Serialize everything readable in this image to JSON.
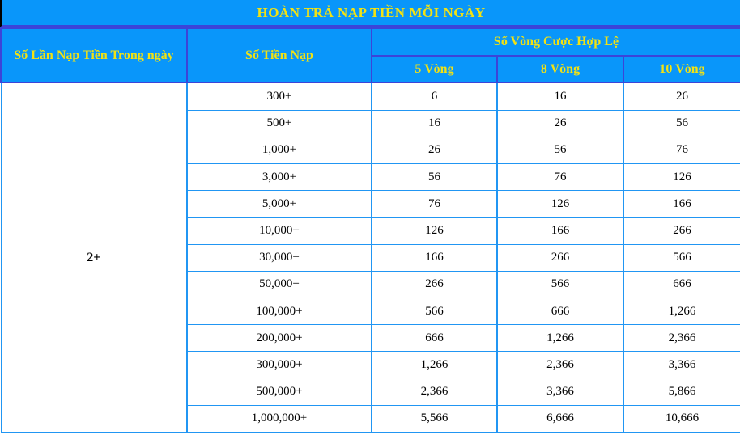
{
  "banner": {
    "title": "HOÀN TRẢ NẠP TIỀN MỖI NGÀY"
  },
  "table": {
    "headers": {
      "deposit_count": "Số Lần Nạp Tiền Trong ngày",
      "deposit_amount": "Số Tiền Nạp",
      "valid_rounds_group": "Số Vòng Cược Hợp Lệ",
      "round_columns": [
        "5 Vòng",
        "8 Vòng",
        "10 Vòng"
      ]
    },
    "deposit_count_value": "2+",
    "rows": [
      {
        "amount": "300+",
        "values": [
          "6",
          "16",
          "26"
        ]
      },
      {
        "amount": "500+",
        "values": [
          "16",
          "26",
          "56"
        ]
      },
      {
        "amount": "1,000+",
        "values": [
          "26",
          "56",
          "76"
        ]
      },
      {
        "amount": "3,000+",
        "values": [
          "56",
          "76",
          "126"
        ]
      },
      {
        "amount": "5,000+",
        "values": [
          "76",
          "126",
          "166"
        ]
      },
      {
        "amount": "10,000+",
        "values": [
          "126",
          "166",
          "266"
        ]
      },
      {
        "amount": "30,000+",
        "values": [
          "166",
          "266",
          "566"
        ]
      },
      {
        "amount": "50,000+",
        "values": [
          "266",
          "566",
          "666"
        ]
      },
      {
        "amount": "100,000+",
        "values": [
          "566",
          "666",
          "1,266"
        ]
      },
      {
        "amount": "200,000+",
        "values": [
          "666",
          "1,266",
          "2,366"
        ]
      },
      {
        "amount": "300,000+",
        "values": [
          "1,266",
          "2,366",
          "3,366"
        ]
      },
      {
        "amount": "500,000+",
        "values": [
          "2,366",
          "3,366",
          "5,866"
        ]
      },
      {
        "amount": "1,000,000+",
        "values": [
          "5,566",
          "6,666",
          "10,666"
        ]
      }
    ]
  },
  "colors": {
    "header_bg": "#0996fa",
    "header_text": "#f2e213",
    "header_border": "#3c44d8",
    "body_border": "#2196f3",
    "body_text": "#000000",
    "banner_left_edge": "#000000"
  }
}
